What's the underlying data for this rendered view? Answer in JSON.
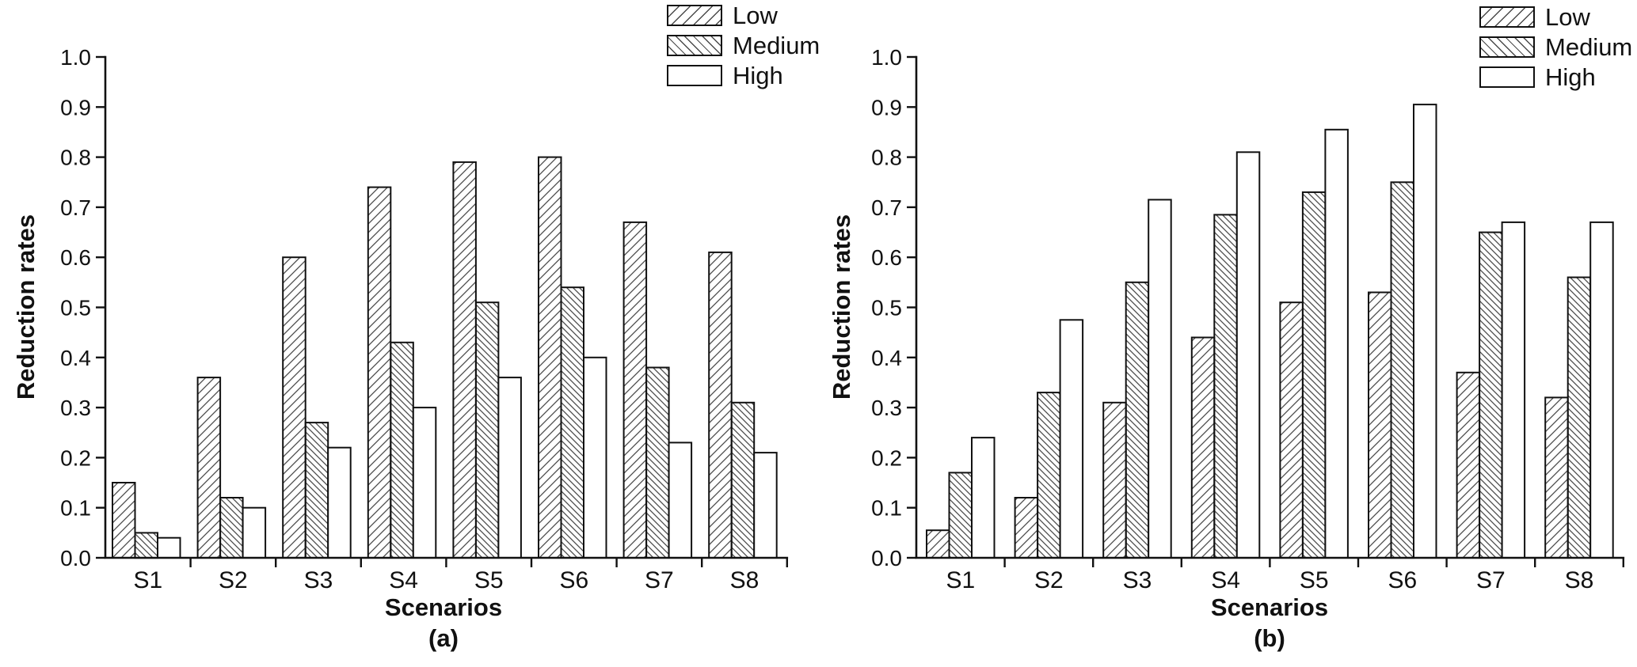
{
  "colors": {
    "ink": "#111111",
    "hatch_line": "#4a4a4a",
    "background": "#ffffff"
  },
  "chart_data": [
    {
      "type": "bar",
      "caption": "(a)",
      "xlabel": "Scenarios",
      "ylabel": "Reduction rates",
      "ylim": [
        0.0,
        1.0
      ],
      "ytick_step": 0.1,
      "grid": false,
      "legend_position": "top-right",
      "categories": [
        "S1",
        "S2",
        "S3",
        "S4",
        "S5",
        "S6",
        "S7",
        "S8"
      ],
      "series": [
        {
          "name": "Low",
          "hatch": "forward-diagonal",
          "values": [
            0.15,
            0.36,
            0.6,
            0.74,
            0.79,
            0.8,
            0.67,
            0.61
          ]
        },
        {
          "name": "Medium",
          "hatch": "backward-diagonal",
          "values": [
            0.05,
            0.12,
            0.27,
            0.43,
            0.51,
            0.54,
            0.38,
            0.31
          ]
        },
        {
          "name": "High",
          "hatch": "none",
          "values": [
            0.04,
            0.1,
            0.22,
            0.3,
            0.36,
            0.4,
            0.23,
            0.21
          ]
        }
      ]
    },
    {
      "type": "bar",
      "caption": "(b)",
      "xlabel": "Scenarios",
      "ylabel": "Reduction rates",
      "ylim": [
        0.0,
        1.0
      ],
      "ytick_step": 0.1,
      "grid": false,
      "legend_position": "top-right",
      "categories": [
        "S1",
        "S2",
        "S3",
        "S4",
        "S5",
        "S6",
        "S7",
        "S8"
      ],
      "series": [
        {
          "name": "Low",
          "hatch": "forward-diagonal",
          "values": [
            0.055,
            0.12,
            0.31,
            0.44,
            0.51,
            0.53,
            0.37,
            0.32
          ]
        },
        {
          "name": "Medium",
          "hatch": "backward-diagonal",
          "values": [
            0.17,
            0.33,
            0.55,
            0.685,
            0.73,
            0.75,
            0.65,
            0.56
          ]
        },
        {
          "name": "High",
          "hatch": "none",
          "values": [
            0.24,
            0.475,
            0.715,
            0.81,
            0.855,
            0.905,
            0.67,
            0.67
          ]
        }
      ]
    }
  ]
}
